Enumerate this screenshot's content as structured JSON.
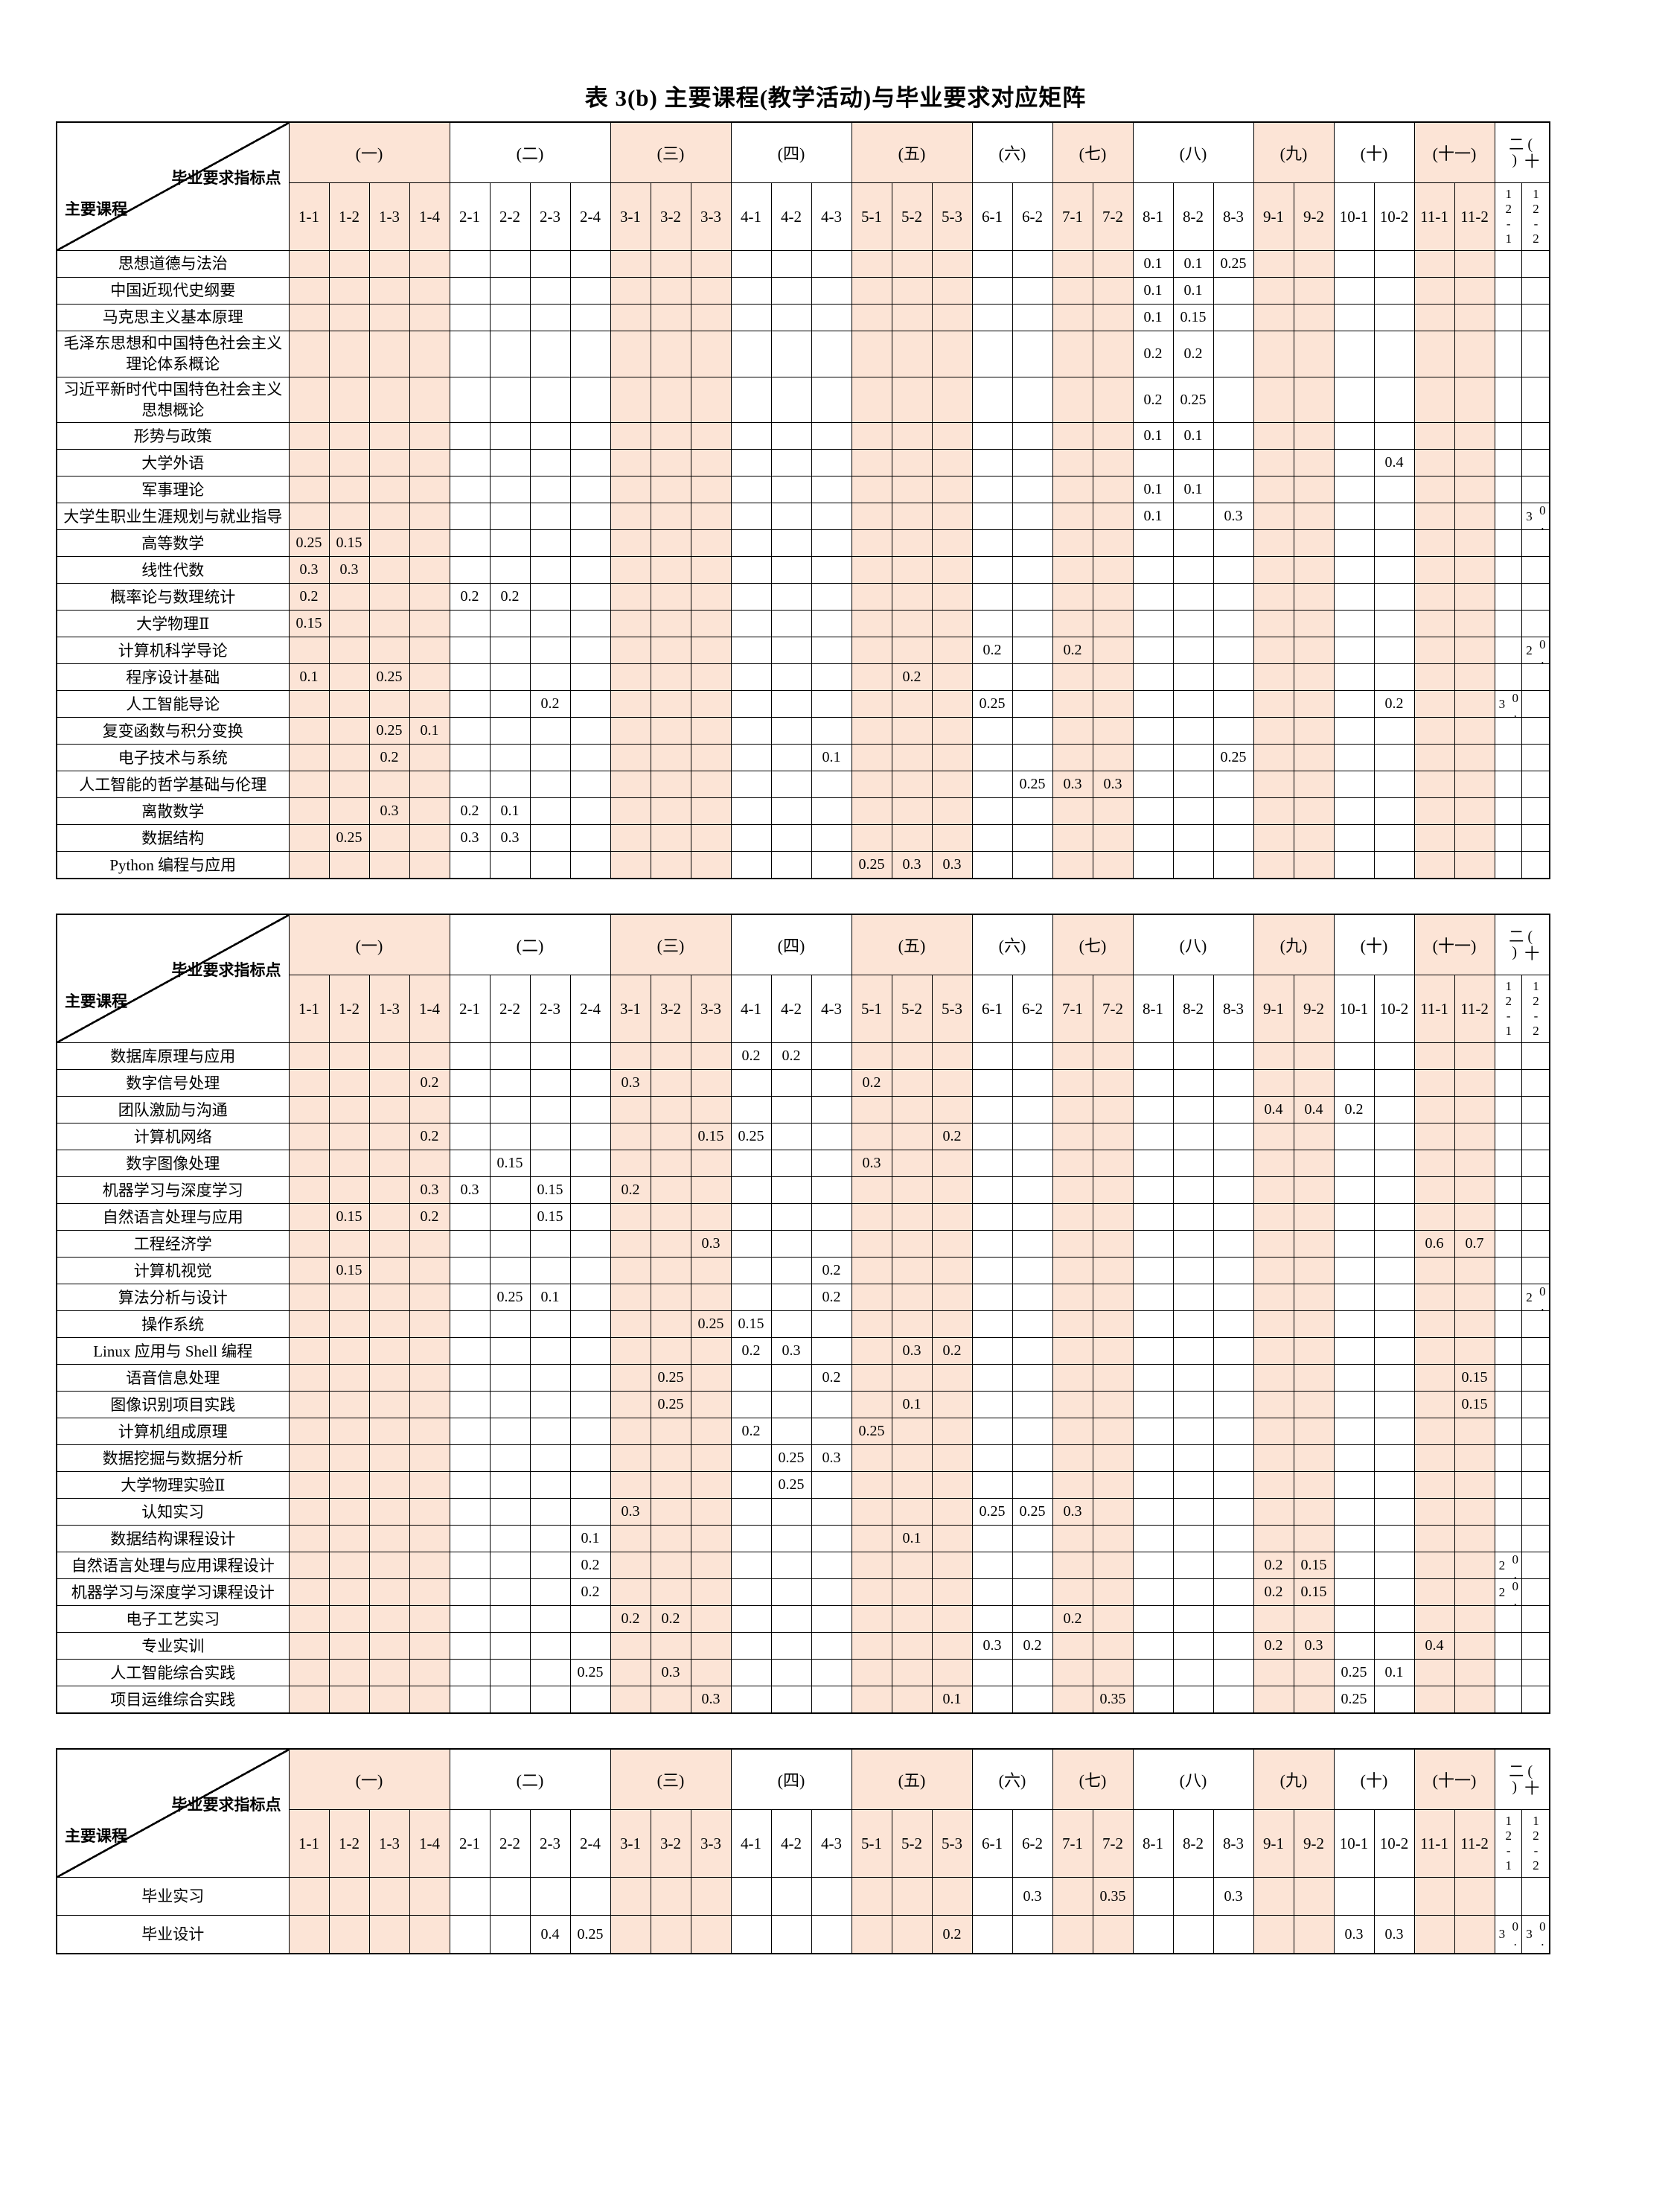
{
  "title": "表 3(b) 主要课程(教学活动)与毕业要求对应矩阵",
  "corner": {
    "top": "毕业要求指标点",
    "bottom": "主要课程"
  },
  "groups": [
    {
      "label": "(一)",
      "pink": true,
      "cols": [
        "1-1",
        "1-2",
        "1-3",
        "1-4"
      ]
    },
    {
      "label": "(二)",
      "pink": false,
      "cols": [
        "2-1",
        "2-2",
        "2-3",
        "2-4"
      ]
    },
    {
      "label": "(三)",
      "pink": true,
      "cols": [
        "3-1",
        "3-2",
        "3-3"
      ]
    },
    {
      "label": "(四)",
      "pink": false,
      "cols": [
        "4-1",
        "4-2",
        "4-3"
      ]
    },
    {
      "label": "(五)",
      "pink": true,
      "cols": [
        "5-1",
        "5-2",
        "5-3"
      ]
    },
    {
      "label": "(六)",
      "pink": false,
      "cols": [
        "6-1",
        "6-2"
      ]
    },
    {
      "label": "(七)",
      "pink": true,
      "cols": [
        "7-1",
        "7-2"
      ]
    },
    {
      "label": "(八)",
      "pink": false,
      "cols": [
        "8-1",
        "8-2",
        "8-3"
      ]
    },
    {
      "label": "(九)",
      "pink": true,
      "cols": [
        "9-1",
        "9-2"
      ]
    },
    {
      "label": "(十)",
      "pink": false,
      "cols": [
        "10-1",
        "10-2"
      ]
    },
    {
      "label": "(十一)",
      "pink": true,
      "cols": [
        "11-1",
        "11-2"
      ]
    },
    {
      "label": "(十二)",
      "pink": false,
      "narrow": true,
      "cols": [
        "12-1",
        "12-2"
      ]
    }
  ],
  "accent_color": "#fce4d6",
  "tables": [
    {
      "rows": [
        {
          "course": "思想道德与法治",
          "values": {
            "8-1": "0.1",
            "8-2": "0.1",
            "8-3": "0.25"
          }
        },
        {
          "course": "中国近现代史纲要",
          "values": {
            "8-1": "0.1",
            "8-2": "0.1"
          }
        },
        {
          "course": "马克思主义基本原理",
          "values": {
            "8-1": "0.1",
            "8-2": "0.15"
          }
        },
        {
          "course": "毛泽东思想和中国特色社会主义理论体系概论",
          "values": {
            "8-1": "0.2",
            "8-2": "0.2"
          }
        },
        {
          "course": "习近平新时代中国特色社会主义思想概论",
          "values": {
            "8-1": "0.2",
            "8-2": "0.25"
          }
        },
        {
          "course": "形势与政策",
          "values": {
            "8-1": "0.1",
            "8-2": "0.1"
          }
        },
        {
          "course": "大学外语",
          "values": {
            "10-2": "0.4"
          }
        },
        {
          "course": "军事理论",
          "values": {
            "8-1": "0.1",
            "8-2": "0.1"
          }
        },
        {
          "course": "大学生职业生涯规划与就业指导",
          "values": {
            "8-1": "0.1",
            "8-3": "0.3",
            "12-2": "0.3"
          }
        },
        {
          "course": "高等数学",
          "values": {
            "1-1": "0.25",
            "1-2": "0.15"
          }
        },
        {
          "course": "线性代数",
          "values": {
            "1-1": "0.3",
            "1-2": "0.3"
          }
        },
        {
          "course": "概率论与数理统计",
          "values": {
            "1-1": "0.2",
            "2-1": "0.2",
            "2-2": "0.2"
          }
        },
        {
          "course": "大学物理Ⅱ",
          "values": {
            "1-1": "0.15"
          }
        },
        {
          "course": "计算机科学导论",
          "values": {
            "6-1": "0.2",
            "7-1": "0.2",
            "12-2": "0.2"
          }
        },
        {
          "course": "程序设计基础",
          "values": {
            "1-1": "0.1",
            "1-3": "0.25",
            "5-2": "0.2"
          }
        },
        {
          "course": "人工智能导论",
          "values": {
            "2-3": "0.2",
            "6-1": "0.25",
            "10-2": "0.2",
            "12-1": "0.3"
          }
        },
        {
          "course": "复变函数与积分变换",
          "values": {
            "1-3": "0.25",
            "1-4": "0.1"
          }
        },
        {
          "course": "电子技术与系统",
          "values": {
            "1-3": "0.2",
            "4-3": "0.1",
            "8-3": "0.25"
          }
        },
        {
          "course": "人工智能的哲学基础与伦理",
          "values": {
            "6-2": "0.25",
            "7-1": "0.3",
            "7-2": "0.3"
          }
        },
        {
          "course": "离散数学",
          "values": {
            "1-3": "0.3",
            "2-1": "0.2",
            "2-2": "0.1"
          }
        },
        {
          "course": "数据结构",
          "values": {
            "1-2": "0.25",
            "2-1": "0.3",
            "2-2": "0.3"
          }
        },
        {
          "course": "Python 编程与应用",
          "values": {
            "5-1": "0.25",
            "5-2": "0.3",
            "5-3": "0.3"
          }
        }
      ]
    },
    {
      "rows": [
        {
          "course": "数据库原理与应用",
          "values": {
            "4-1": "0.2",
            "4-2": "0.2"
          }
        },
        {
          "course": "数字信号处理",
          "values": {
            "1-4": "0.2",
            "3-1": "0.3",
            "5-1": "0.2"
          }
        },
        {
          "course": "团队激励与沟通",
          "values": {
            "9-1": "0.4",
            "9-2": "0.4",
            "10-1": "0.2"
          }
        },
        {
          "course": "计算机网络",
          "values": {
            "1-4": "0.2",
            "3-3": "0.15",
            "4-1": "0.25",
            "5-3": "0.2"
          }
        },
        {
          "course": "数字图像处理",
          "values": {
            "2-2": "0.15",
            "5-1": "0.3"
          }
        },
        {
          "course": "机器学习与深度学习",
          "values": {
            "1-4": "0.3",
            "2-1": "0.3",
            "2-3": "0.15",
            "3-1": "0.2"
          }
        },
        {
          "course": "自然语言处理与应用",
          "values": {
            "1-2": "0.15",
            "1-4": "0.2",
            "2-3": "0.15"
          }
        },
        {
          "course": "工程经济学",
          "values": {
            "3-3": "0.3",
            "11-1": "0.6",
            "11-2": "0.7"
          }
        },
        {
          "course": "计算机视觉",
          "values": {
            "1-2": "0.15",
            "4-3": "0.2"
          }
        },
        {
          "course": "算法分析与设计",
          "values": {
            "2-2": "0.25",
            "2-3": "0.1",
            "4-3": "0.2",
            "12-2": "0.2"
          }
        },
        {
          "course": "操作系统",
          "values": {
            "3-3": "0.25",
            "4-1": "0.15"
          }
        },
        {
          "course": "Linux 应用与 Shell 编程",
          "values": {
            "4-1": "0.2",
            "4-2": "0.3",
            "5-2": "0.3",
            "5-3": "0.2"
          }
        },
        {
          "course": "语音信息处理",
          "values": {
            "3-2": "0.25",
            "4-3": "0.2",
            "11-2": "0.15"
          }
        },
        {
          "course": "图像识别项目实践",
          "values": {
            "3-2": "0.25",
            "5-2": "0.1",
            "11-2": "0.15"
          }
        },
        {
          "course": "计算机组成原理",
          "values": {
            "4-1": "0.2",
            "5-1": "0.25"
          }
        },
        {
          "course": "数据挖掘与数据分析",
          "values": {
            "4-2": "0.25",
            "4-3": "0.3"
          }
        },
        {
          "course": "大学物理实验Ⅱ",
          "values": {
            "4-2": "0.25"
          }
        },
        {
          "course": "认知实习",
          "values": {
            "3-1": "0.3",
            "6-1": "0.25",
            "6-2": "0.25",
            "7-1": "0.3"
          }
        },
        {
          "course": "数据结构课程设计",
          "values": {
            "2-4": "0.1",
            "5-2": "0.1"
          }
        },
        {
          "course": "自然语言处理与应用课程设计",
          "values": {
            "2-4": "0.2",
            "9-1": "0.2",
            "9-2": "0.15",
            "12-1": "0.2"
          }
        },
        {
          "course": "机器学习与深度学习课程设计",
          "values": {
            "2-4": "0.2",
            "9-1": "0.2",
            "9-2": "0.15",
            "12-1": "0.2"
          }
        },
        {
          "course": "电子工艺实习",
          "values": {
            "3-1": "0.2",
            "3-2": "0.2",
            "7-1": "0.2"
          }
        },
        {
          "course": "专业实训",
          "values": {
            "6-1": "0.3",
            "6-2": "0.2",
            "9-1": "0.2",
            "9-2": "0.3",
            "11-1": "0.4"
          }
        },
        {
          "course": "人工智能综合实践",
          "values": {
            "2-4": "0.25",
            "3-2": "0.3",
            "10-1": "0.25",
            "10-2": "0.1"
          }
        },
        {
          "course": "项目运维综合实践",
          "values": {
            "3-3": "0.3",
            "5-3": "0.1",
            "7-2": "0.35",
            "10-1": "0.25"
          }
        }
      ]
    },
    {
      "rows": [
        {
          "course": "毕业实习",
          "values": {
            "6-2": "0.3",
            "7-2": "0.35",
            "8-3": "0.3"
          }
        },
        {
          "course": "毕业设计",
          "values": {
            "2-3": "0.4",
            "2-4": "0.25",
            "5-3": "0.2",
            "10-1": "0.3",
            "10-2": "0.3",
            "12-1": "0.3",
            "12-2": "0.3"
          }
        }
      ]
    }
  ]
}
